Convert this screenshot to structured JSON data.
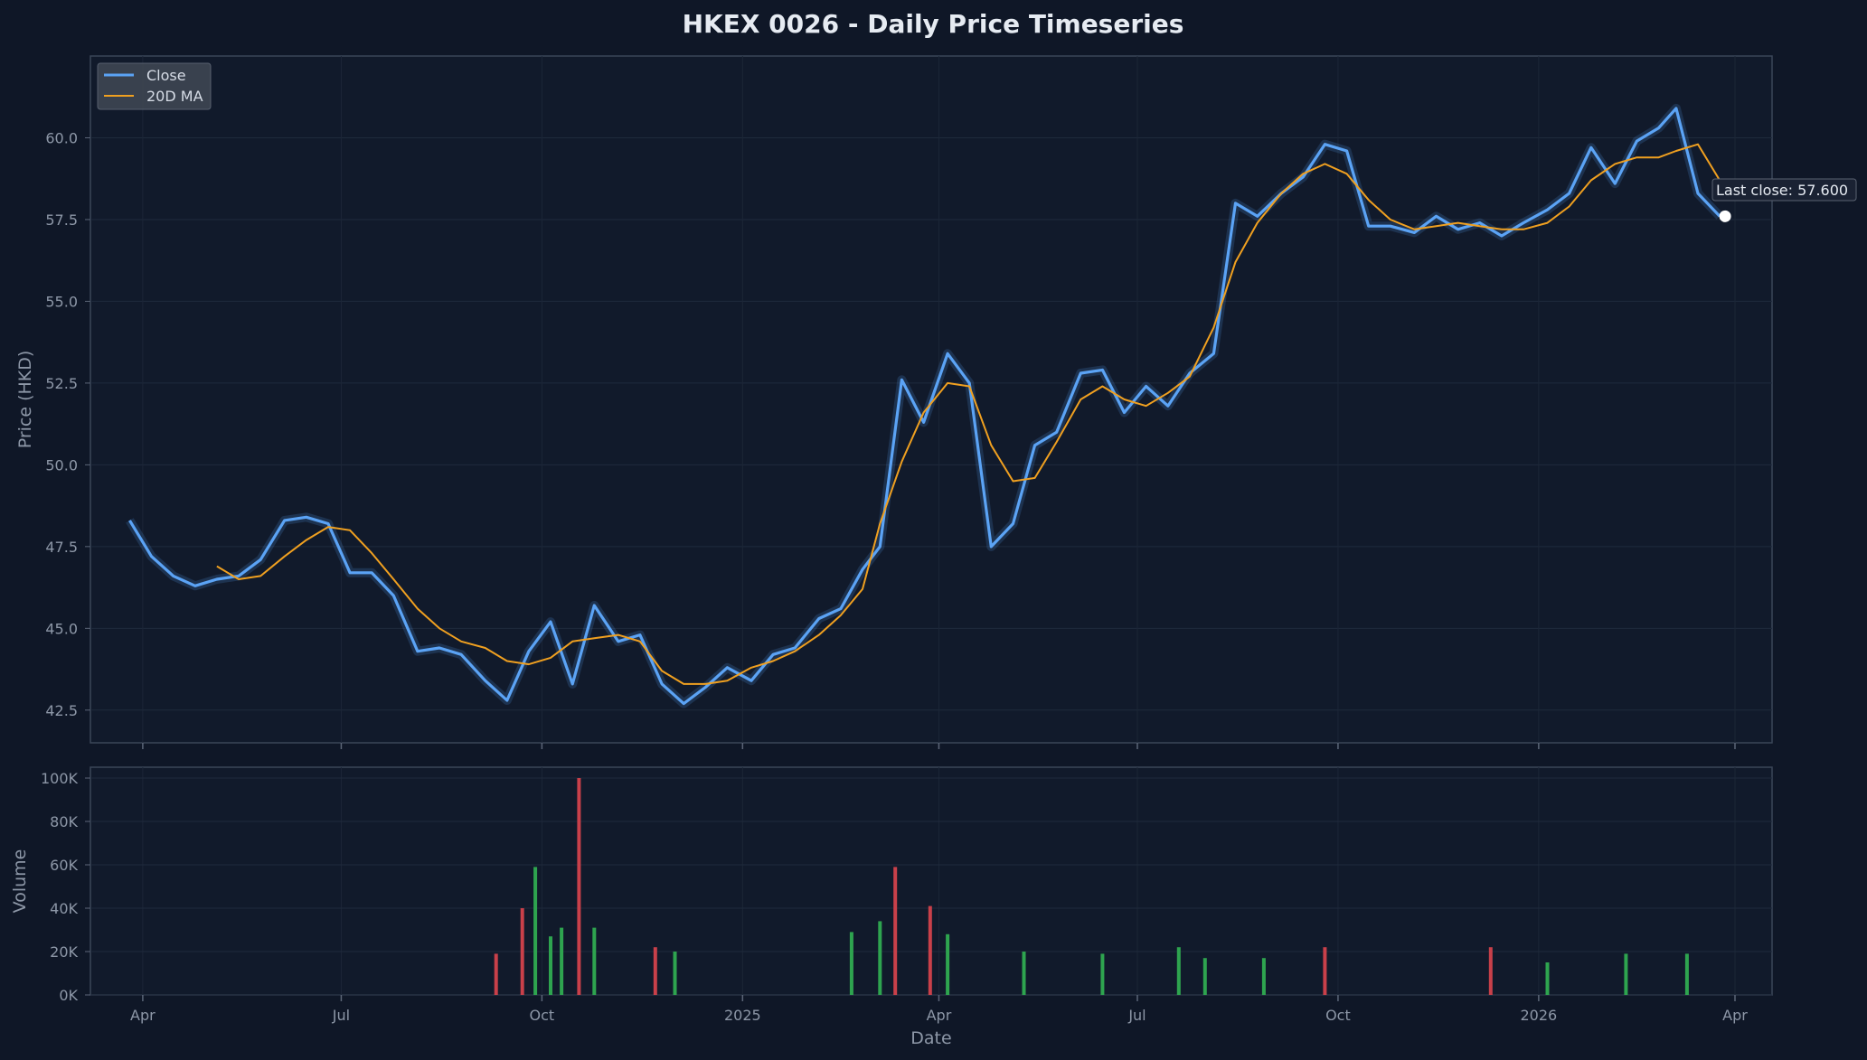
{
  "chart_data": [
    {
      "type": "line",
      "title": "HKEX 0026 - Daily Price Timeseries",
      "xlabel": "",
      "ylabel": "Price (HKD)",
      "ylim": [
        41.5,
        62.5
      ],
      "yticks": [
        "42.5",
        "45.0",
        "47.5",
        "50.0",
        "52.5",
        "55.0",
        "57.5",
        "60.0"
      ],
      "grid": true,
      "legend_placement": "top-left",
      "x_dates": [
        "2024-03-26",
        "2024-04-05",
        "2024-04-15",
        "2024-04-25",
        "2024-05-05",
        "2024-05-15",
        "2024-05-25",
        "2024-06-05",
        "2024-06-15",
        "2024-06-25",
        "2024-07-05",
        "2024-07-15",
        "2024-07-25",
        "2024-08-05",
        "2024-08-15",
        "2024-08-25",
        "2024-09-05",
        "2024-09-15",
        "2024-09-25",
        "2024-10-05",
        "2024-10-15",
        "2024-10-25",
        "2024-11-05",
        "2024-11-15",
        "2024-11-25",
        "2024-12-05",
        "2024-12-15",
        "2024-12-25",
        "2025-01-05",
        "2025-01-15",
        "2025-01-25",
        "2025-02-05",
        "2025-02-15",
        "2025-02-25",
        "2025-03-05",
        "2025-03-15",
        "2025-03-25",
        "2025-04-05",
        "2025-04-15",
        "2025-04-25",
        "2025-05-05",
        "2025-05-15",
        "2025-05-25",
        "2025-06-05",
        "2025-06-15",
        "2025-06-25",
        "2025-07-05",
        "2025-07-15",
        "2025-07-25",
        "2025-08-05",
        "2025-08-15",
        "2025-08-25",
        "2025-09-05",
        "2025-09-15",
        "2025-09-25",
        "2025-10-05",
        "2025-10-15",
        "2025-10-25",
        "2025-11-05",
        "2025-11-15",
        "2025-11-25",
        "2025-12-05",
        "2025-12-15",
        "2025-12-25",
        "2026-01-05",
        "2026-01-15",
        "2026-01-25",
        "2026-02-05",
        "2026-02-15",
        "2026-02-25",
        "2026-03-05",
        "2026-03-15",
        "2026-03-25"
      ],
      "series": [
        {
          "name": "Close",
          "color": "#5ba3f5",
          "values": [
            48.3,
            47.2,
            46.6,
            46.3,
            46.5,
            46.6,
            47.1,
            48.3,
            48.4,
            48.2,
            46.7,
            46.7,
            46.0,
            44.3,
            44.4,
            44.2,
            43.4,
            42.8,
            44.3,
            45.2,
            43.3,
            45.7,
            44.6,
            44.8,
            43.3,
            42.7,
            43.2,
            43.8,
            43.4,
            44.2,
            44.4,
            45.3,
            45.6,
            46.8,
            47.5,
            52.6,
            51.3,
            53.4,
            52.5,
            47.5,
            48.2,
            50.6,
            51.0,
            52.8,
            52.9,
            51.6,
            52.4,
            51.8,
            52.8,
            53.4,
            58.0,
            57.6,
            58.3,
            58.8,
            59.8,
            59.6,
            57.3,
            57.3,
            57.1,
            57.6,
            57.2,
            57.4,
            57.0,
            57.4,
            57.8,
            58.3,
            59.7,
            58.6,
            59.9,
            60.3,
            60.9,
            58.3,
            57.6
          ]
        },
        {
          "name": "20D MA",
          "color": "#f0a020",
          "values": [
            null,
            null,
            null,
            null,
            46.9,
            46.5,
            46.6,
            47.2,
            47.7,
            48.1,
            48.0,
            47.3,
            46.5,
            45.6,
            45.0,
            44.6,
            44.4,
            44.0,
            43.9,
            44.1,
            44.6,
            44.7,
            44.8,
            44.6,
            43.7,
            43.3,
            43.3,
            43.4,
            43.8,
            44.0,
            44.3,
            44.8,
            45.4,
            46.2,
            48.2,
            50.1,
            51.6,
            52.5,
            52.4,
            50.6,
            49.5,
            49.6,
            50.7,
            52.0,
            52.4,
            52.0,
            51.8,
            52.2,
            52.7,
            54.2,
            56.2,
            57.4,
            58.3,
            58.9,
            59.2,
            58.9,
            58.1,
            57.5,
            57.2,
            57.3,
            57.4,
            57.3,
            57.2,
            57.2,
            57.4,
            57.9,
            58.7,
            59.2,
            59.4,
            59.4,
            59.6,
            59.8,
            58.7
          ]
        }
      ],
      "annotations": [
        "Last close: 57.600"
      ]
    },
    {
      "type": "bar",
      "xlabel": "Date",
      "ylabel": "Volume",
      "ylim": [
        0,
        105000
      ],
      "yticks": [
        "0K",
        "20K",
        "40K",
        "60K",
        "80K",
        "100K"
      ],
      "xticks": [
        "Apr",
        "Jul",
        "Oct",
        "2025",
        "Apr",
        "Jul",
        "Oct",
        "2026",
        "Apr"
      ],
      "up_color": "#2ea44f",
      "down_color": "#c9404a",
      "series": [
        {
          "name": "Volume",
          "x": [
            "2024-09-10",
            "2024-09-22",
            "2024-09-28",
            "2024-10-05",
            "2024-10-10",
            "2024-10-18",
            "2024-10-25",
            "2024-11-22",
            "2024-12-01",
            "2025-02-20",
            "2025-03-05",
            "2025-03-12",
            "2025-03-28",
            "2025-04-05",
            "2025-05-10",
            "2025-06-15",
            "2025-07-20",
            "2025-08-01",
            "2025-08-28",
            "2025-09-25",
            "2025-12-10",
            "2026-01-05",
            "2026-02-10",
            "2026-03-10"
          ],
          "values": [
            19000,
            40000,
            59000,
            27000,
            31000,
            100000,
            31000,
            22000,
            20000,
            29000,
            34000,
            59000,
            41000,
            28000,
            20000,
            19000,
            22000,
            17000,
            17000,
            22000,
            22000,
            15000,
            19000,
            19000
          ],
          "directions": [
            "down",
            "down",
            "up",
            "up",
            "up",
            "down",
            "up",
            "down",
            "up",
            "up",
            "up",
            "down",
            "down",
            "up",
            "up",
            "up",
            "up",
            "up",
            "up",
            "down",
            "down",
            "up",
            "up",
            "up"
          ]
        }
      ]
    }
  ]
}
